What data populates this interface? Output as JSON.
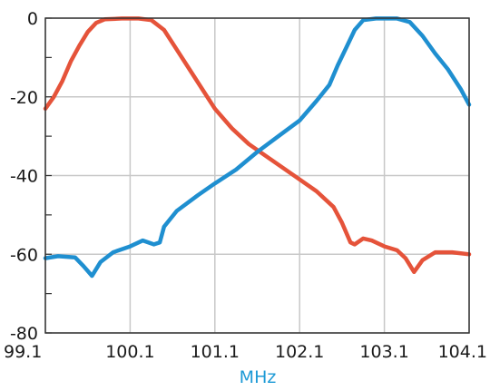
{
  "chart_data": {
    "type": "line",
    "xlabel": "MHz",
    "ylabel": "",
    "xlim": [
      99.1,
      104.1
    ],
    "ylim": [
      -80,
      0
    ],
    "x_ticks": [
      99.1,
      100.1,
      101.1,
      102.1,
      103.1,
      104.1
    ],
    "x_tick_labels": [
      "99.1",
      "100.1",
      "101.1",
      "102.1",
      "103.1",
      "104.1"
    ],
    "y_ticks": [
      0,
      -20,
      -40,
      -60,
      -80
    ],
    "y_tick_labels": [
      "0",
      "-20",
      "-40",
      "-60",
      "-80"
    ],
    "y_minor_step": 10,
    "grid": true,
    "legend": "none",
    "colors": {
      "xlabel": "#1d9ad6",
      "grid": "#c8c8c8",
      "axis": "#333333"
    },
    "series": [
      {
        "color": "#e5533a",
        "points": [
          [
            99.1,
            -23
          ],
          [
            99.2,
            -20
          ],
          [
            99.3,
            -16
          ],
          [
            99.4,
            -11
          ],
          [
            99.5,
            -7
          ],
          [
            99.6,
            -3.5
          ],
          [
            99.7,
            -1.2
          ],
          [
            99.8,
            -0.3
          ],
          [
            100.0,
            -0.1
          ],
          [
            100.2,
            -0.1
          ],
          [
            100.35,
            -0.5
          ],
          [
            100.5,
            -3
          ],
          [
            100.65,
            -8
          ],
          [
            100.8,
            -13
          ],
          [
            100.95,
            -18
          ],
          [
            101.1,
            -23
          ],
          [
            101.3,
            -28
          ],
          [
            101.5,
            -32
          ],
          [
            101.7,
            -35
          ],
          [
            101.9,
            -38
          ],
          [
            102.1,
            -41
          ],
          [
            102.3,
            -44
          ],
          [
            102.5,
            -48
          ],
          [
            102.6,
            -52
          ],
          [
            102.7,
            -57
          ],
          [
            102.75,
            -57.5
          ],
          [
            102.85,
            -56
          ],
          [
            102.95,
            -56.5
          ],
          [
            103.1,
            -58
          ],
          [
            103.25,
            -59
          ],
          [
            103.35,
            -61
          ],
          [
            103.45,
            -64.5
          ],
          [
            103.55,
            -61.5
          ],
          [
            103.7,
            -59.5
          ],
          [
            103.9,
            -59.5
          ],
          [
            104.1,
            -60
          ]
        ]
      },
      {
        "color": "#1f8fd0",
        "points": [
          [
            99.1,
            -61
          ],
          [
            99.25,
            -60.5
          ],
          [
            99.45,
            -60.8
          ],
          [
            99.55,
            -63
          ],
          [
            99.65,
            -65.5
          ],
          [
            99.75,
            -62
          ],
          [
            99.9,
            -59.5
          ],
          [
            100.1,
            -58
          ],
          [
            100.25,
            -56.5
          ],
          [
            100.38,
            -57.5
          ],
          [
            100.45,
            -57
          ],
          [
            100.5,
            -53
          ],
          [
            100.65,
            -49
          ],
          [
            100.9,
            -45
          ],
          [
            101.1,
            -42
          ],
          [
            101.35,
            -38.5
          ],
          [
            101.6,
            -34
          ],
          [
            101.85,
            -30
          ],
          [
            102.1,
            -26
          ],
          [
            102.3,
            -21
          ],
          [
            102.45,
            -17
          ],
          [
            102.55,
            -12
          ],
          [
            102.65,
            -7.5
          ],
          [
            102.75,
            -3
          ],
          [
            102.85,
            -0.5
          ],
          [
            103.0,
            -0.1
          ],
          [
            103.25,
            -0.1
          ],
          [
            103.4,
            -1
          ],
          [
            103.55,
            -4.5
          ],
          [
            103.7,
            -9
          ],
          [
            103.85,
            -13
          ],
          [
            104.0,
            -18
          ],
          [
            104.1,
            -22
          ]
        ]
      }
    ]
  }
}
